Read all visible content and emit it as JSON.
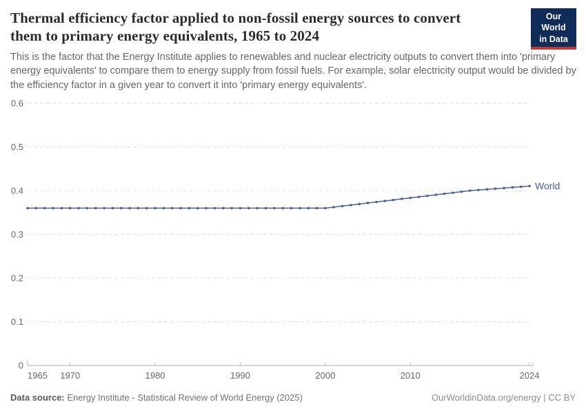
{
  "header": {
    "title": "Thermal efficiency factor applied to non-fossil energy sources to convert them to primary energy equivalents, 1965 to 2024",
    "subtitle": "This is the factor that the Energy Institute applies to renewables and nuclear electricity outputs to convert them into 'primary energy equivalents' to compare them to energy supply from fossil fuels. For example, solar electricity output would be divided by the efficiency factor in a given year to convert it into 'primary energy equivalents'.",
    "logo": {
      "line1": "Our World",
      "line2": "in Data"
    }
  },
  "chart_data": {
    "type": "line",
    "title": "Thermal efficiency factor applied to non-fossil energy sources to convert them to primary energy equivalents, 1965 to 2024",
    "xlabel": "",
    "ylabel": "",
    "xlim": [
      1965,
      2024
    ],
    "ylim": [
      0,
      0.6
    ],
    "x_ticks": [
      1965,
      1970,
      1980,
      1990,
      2000,
      2010,
      2024
    ],
    "y_ticks": [
      0,
      0.1,
      0.2,
      0.3,
      0.4,
      0.5,
      0.6
    ],
    "grid": "horizontal-dashed",
    "legend_position": "end-of-line",
    "series": [
      {
        "name": "World",
        "color": "#45629f",
        "x": [
          1965,
          1966,
          1967,
          1968,
          1969,
          1970,
          1971,
          1972,
          1973,
          1974,
          1975,
          1976,
          1977,
          1978,
          1979,
          1980,
          1981,
          1982,
          1983,
          1984,
          1985,
          1986,
          1987,
          1988,
          1989,
          1990,
          1991,
          1992,
          1993,
          1994,
          1995,
          1996,
          1997,
          1998,
          1999,
          2000,
          2001,
          2002,
          2003,
          2004,
          2005,
          2006,
          2007,
          2008,
          2009,
          2010,
          2011,
          2012,
          2013,
          2014,
          2015,
          2016,
          2017,
          2018,
          2019,
          2020,
          2021,
          2022,
          2023,
          2024
        ],
        "values": [
          0.36,
          0.36,
          0.36,
          0.36,
          0.36,
          0.36,
          0.36,
          0.36,
          0.36,
          0.36,
          0.36,
          0.36,
          0.36,
          0.36,
          0.36,
          0.36,
          0.36,
          0.36,
          0.36,
          0.36,
          0.36,
          0.36,
          0.36,
          0.36,
          0.36,
          0.36,
          0.36,
          0.36,
          0.36,
          0.36,
          0.36,
          0.36,
          0.36,
          0.36,
          0.36,
          0.36,
          0.3624,
          0.3647,
          0.3671,
          0.3694,
          0.3718,
          0.3741,
          0.3765,
          0.3788,
          0.3812,
          0.3835,
          0.3859,
          0.3882,
          0.3906,
          0.3929,
          0.3953,
          0.3976,
          0.4,
          0.4015,
          0.403,
          0.4045,
          0.406,
          0.4075,
          0.409,
          0.4105
        ]
      }
    ]
  },
  "footer": {
    "source_label": "Data source:",
    "source_text": "Energy Institute - Statistical Review of World Energy (2025)",
    "credit": "OurWorldinData.org/energy | CC BY"
  },
  "colors": {
    "line": "#45629f",
    "grid": "#e2e2e2",
    "axis": "#a9a9a9",
    "tick": "#c4c4c4",
    "axis_text": "#63676d",
    "logo_bg": "#102d59",
    "logo_stripe": "#d0342c",
    "title_text": "#2b2b2b",
    "subtitle_text": "#666666"
  }
}
